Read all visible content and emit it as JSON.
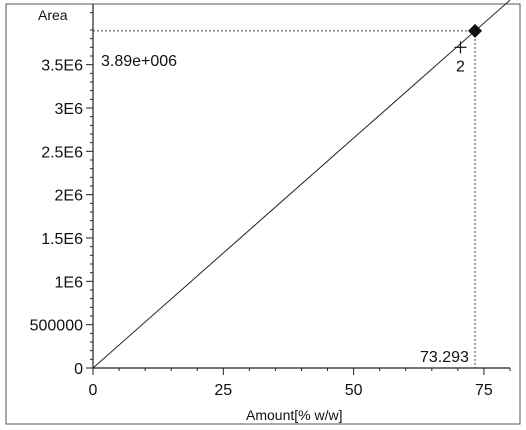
{
  "chart_data": {
    "type": "scatter",
    "title": "",
    "xlabel": "Amount[% w/w]",
    "ylabel": "Area",
    "xlim": [
      0,
      80
    ],
    "ylim": [
      0,
      4200000
    ],
    "x_ticks": [
      0,
      25,
      50,
      75
    ],
    "x_tick_labels": [
      "0",
      "25",
      "50",
      "75"
    ],
    "y_ticks": [
      0,
      500000,
      1000000,
      1500000,
      2000000,
      2500000,
      3000000,
      3500000
    ],
    "y_tick_labels": [
      "0",
      "500000",
      "1E6",
      "1.5E6",
      "2E6",
      "2.5E6",
      "3E6",
      "3.5E6"
    ],
    "grid": false,
    "calibration_line": {
      "x": [
        0,
        80
      ],
      "y": [
        0,
        4245000
      ]
    },
    "calibration_points": [
      {
        "label": "2",
        "x": 70.5,
        "y": 3700000
      }
    ],
    "sample_point": {
      "x": 73.293,
      "y": 3890000
    },
    "annotations": {
      "x_value": "73.293",
      "y_value": "3.89e+006"
    },
    "colors": {
      "line": "#222222",
      "marker": "#111111",
      "guide": "#444444"
    }
  }
}
